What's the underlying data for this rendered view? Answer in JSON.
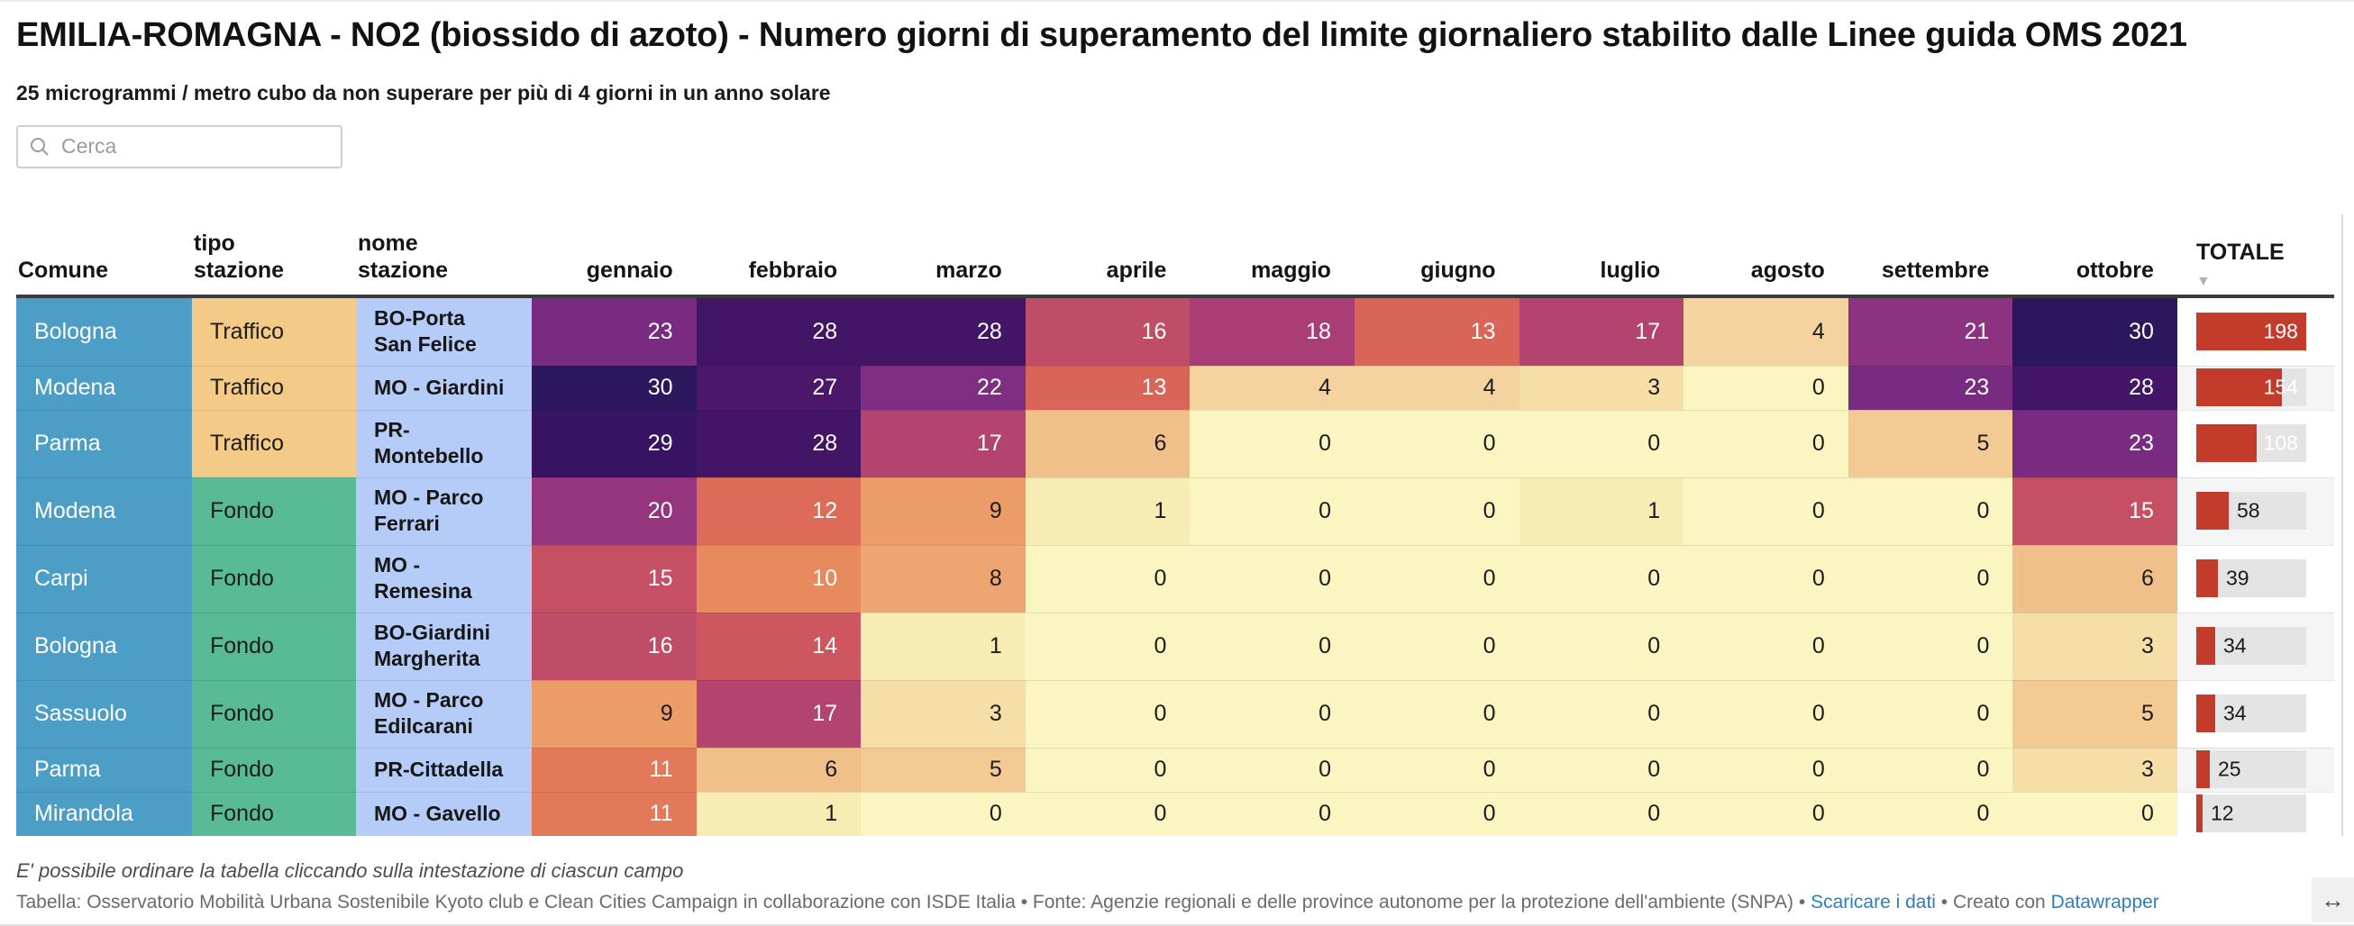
{
  "header": {
    "title": "EMILIA-ROMAGNA - NO2 (biossido di azoto) - Numero giorni di superamento del limite giornaliero stabilito dalle Linee guida OMS 2021",
    "subtitle": "25 microgrammi / metro cubo da non superare per più di 4 giorni in un anno solare"
  },
  "search": {
    "placeholder": "Cerca",
    "value": ""
  },
  "chart_data": {
    "type": "table",
    "columns": {
      "comune": "Comune",
      "tipo_stazione": [
        "tipo",
        "stazione"
      ],
      "nome_stazione": [
        "nome",
        "stazione"
      ],
      "months": [
        "gennaio",
        "febbraio",
        "marzo",
        "aprile",
        "maggio",
        "giugno",
        "luglio",
        "agosto",
        "settembre",
        "ottobre"
      ],
      "totale": "TOTALE",
      "sort_icon": "▼",
      "sorted_column": "TOTALE",
      "sort_direction": "descending"
    },
    "rows": [
      {
        "comune": "Bologna",
        "tipo": "Traffico",
        "nome": [
          "BO-Porta",
          "San Felice"
        ],
        "values": [
          23,
          28,
          28,
          16,
          18,
          13,
          17,
          4,
          21,
          30
        ],
        "totale": 198
      },
      {
        "comune": "Modena",
        "tipo": "Traffico",
        "nome": [
          "MO - Giardini"
        ],
        "values": [
          30,
          27,
          22,
          13,
          4,
          4,
          3,
          0,
          23,
          28
        ],
        "totale": 154
      },
      {
        "comune": "Parma",
        "tipo": "Traffico",
        "nome": [
          "PR-",
          "Montebello"
        ],
        "values": [
          29,
          28,
          17,
          6,
          0,
          0,
          0,
          0,
          5,
          23
        ],
        "totale": 108
      },
      {
        "comune": "Modena",
        "tipo": "Fondo",
        "nome": [
          "MO - Parco",
          "Ferrari"
        ],
        "values": [
          20,
          12,
          9,
          1,
          0,
          0,
          1,
          0,
          0,
          15
        ],
        "totale": 58
      },
      {
        "comune": "Carpi",
        "tipo": "Fondo",
        "nome": [
          "MO -",
          "Remesina"
        ],
        "values": [
          15,
          10,
          8,
          0,
          0,
          0,
          0,
          0,
          0,
          6
        ],
        "totale": 39
      },
      {
        "comune": "Bologna",
        "tipo": "Fondo",
        "nome": [
          "BO-Giardini",
          "Margherita"
        ],
        "values": [
          16,
          14,
          1,
          0,
          0,
          0,
          0,
          0,
          0,
          3
        ],
        "totale": 34
      },
      {
        "comune": "Sassuolo",
        "tipo": "Fondo",
        "nome": [
          "MO - Parco",
          "Edilcarani"
        ],
        "values": [
          9,
          17,
          3,
          0,
          0,
          0,
          0,
          0,
          0,
          5
        ],
        "totale": 34
      },
      {
        "comune": "Parma",
        "tipo": "Fondo",
        "nome": [
          "PR-Cittadella"
        ],
        "values": [
          11,
          6,
          5,
          0,
          0,
          0,
          0,
          0,
          0,
          3
        ],
        "totale": 25
      },
      {
        "comune": "Mirandola",
        "tipo": "Fondo",
        "nome": [
          "MO - Gavello"
        ],
        "values": [
          11,
          1,
          0,
          0,
          0,
          0,
          0,
          0,
          0,
          0
        ],
        "totale": 12
      }
    ],
    "totale_max": 198,
    "value_text_white_min": 10,
    "bar_label_inside_min": 100
  },
  "colors": {
    "comune_bg": "#4C9EC7",
    "nome_bg": "#B5CCF8",
    "station_type_colors": {
      "Traffico": "#F3CB86",
      "Fondo": "#58BB95"
    },
    "value_colors": {
      "0": "#FAF5C1",
      "1": "#F7ECB3",
      "3": "#F6DFA7",
      "4": "#F5D39E",
      "5": "#F3CA94",
      "6": "#F0C08B",
      "8": "#EDA671",
      "9": "#EB9C67",
      "10": "#E78A5E",
      "11": "#E27959",
      "12": "#DC6C58",
      "13": "#D96458",
      "14": "#CD575F",
      "15": "#C55064",
      "16": "#C04D68",
      "17": "#B3446F",
      "18": "#A83E75",
      "20": "#95357D",
      "21": "#8B3380",
      "22": "#7F2E82",
      "23": "#772C81",
      "27": "#4A176A",
      "28": "#431566",
      "29": "#391363",
      "30": "#2A175C"
    },
    "bar": "#C23B2B",
    "bar_track": "#E4E4E4",
    "link": "#2E7EBE"
  },
  "footer": {
    "note": "E' possibile ordinare la tabella cliccando sulla intestazione di ciascun campo",
    "caption_prefix": "Tabella: Osservatorio Mobilità Urbana Sostenibile Kyoto club e Clean Cities Campaign in collaborazione con ISDE Italia • Fonte: Agenzie regionali e delle province autonome per la protezione dell'ambiente (SNPA) • ",
    "link_download": "Scaricare i dati",
    "caption_middle": " • Creato con ",
    "link_datawrapper": "Datawrapper",
    "expand_icon": "↔"
  }
}
